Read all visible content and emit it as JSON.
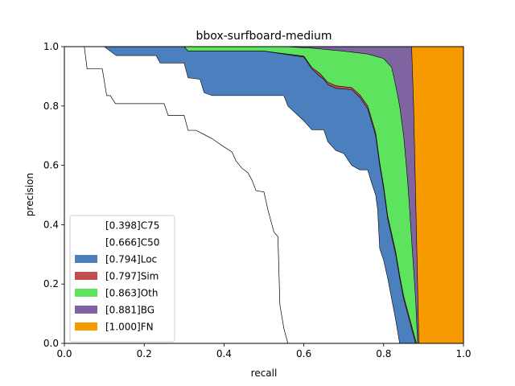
{
  "chart_data": {
    "type": "area",
    "title": "bbox-surfboard-medium",
    "xlabel": "recall",
    "ylabel": "precision",
    "xlim": [
      0,
      1
    ],
    "ylim": [
      0,
      1
    ],
    "xticks": [
      "0.0",
      "0.2",
      "0.4",
      "0.6",
      "0.8",
      "1.0"
    ],
    "yticks": [
      "0.0",
      "0.2",
      "0.4",
      "0.6",
      "0.8",
      "1.0"
    ],
    "grid": false,
    "legend_position": "lower-left",
    "series": [
      {
        "name": "[0.398]C75",
        "kind": "line",
        "color": "#000000",
        "points": [
          [
            0.0,
            1.0
          ],
          [
            0.05,
            1.0
          ],
          [
            0.057,
            0.925
          ],
          [
            0.095,
            0.925
          ],
          [
            0.106,
            0.835
          ],
          [
            0.115,
            0.835
          ],
          [
            0.128,
            0.808
          ],
          [
            0.2,
            0.808
          ],
          [
            0.25,
            0.808
          ],
          [
            0.26,
            0.768
          ],
          [
            0.3,
            0.768
          ],
          [
            0.31,
            0.718
          ],
          [
            0.33,
            0.718
          ],
          [
            0.37,
            0.69
          ],
          [
            0.4,
            0.662
          ],
          [
            0.42,
            0.645
          ],
          [
            0.43,
            0.615
          ],
          [
            0.445,
            0.59
          ],
          [
            0.46,
            0.575
          ],
          [
            0.47,
            0.55
          ],
          [
            0.48,
            0.515
          ],
          [
            0.5,
            0.51
          ],
          [
            0.51,
            0.45
          ],
          [
            0.525,
            0.375
          ],
          [
            0.535,
            0.36
          ],
          [
            0.54,
            0.13
          ],
          [
            0.55,
            0.05
          ],
          [
            0.56,
            0.0
          ]
        ]
      },
      {
        "name": "[0.666]C50",
        "kind": "area",
        "color": "#ffffff",
        "points": [
          [
            0.0,
            1.0
          ],
          [
            0.1,
            1.0
          ],
          [
            0.13,
            0.97
          ],
          [
            0.23,
            0.97
          ],
          [
            0.24,
            0.945
          ],
          [
            0.3,
            0.945
          ],
          [
            0.31,
            0.895
          ],
          [
            0.34,
            0.89
          ],
          [
            0.35,
            0.845
          ],
          [
            0.37,
            0.835
          ],
          [
            0.44,
            0.835
          ],
          [
            0.55,
            0.835
          ],
          [
            0.56,
            0.8
          ],
          [
            0.58,
            0.775
          ],
          [
            0.6,
            0.75
          ],
          [
            0.62,
            0.72
          ],
          [
            0.65,
            0.72
          ],
          [
            0.66,
            0.68
          ],
          [
            0.68,
            0.65
          ],
          [
            0.7,
            0.64
          ],
          [
            0.72,
            0.6
          ],
          [
            0.74,
            0.585
          ],
          [
            0.76,
            0.585
          ],
          [
            0.77,
            0.54
          ],
          [
            0.78,
            0.5
          ],
          [
            0.785,
            0.45
          ],
          [
            0.79,
            0.32
          ],
          [
            0.8,
            0.28
          ],
          [
            0.81,
            0.22
          ],
          [
            0.82,
            0.15
          ],
          [
            0.83,
            0.08
          ],
          [
            0.84,
            0.0
          ]
        ]
      },
      {
        "name": "[0.794]Loc",
        "kind": "area",
        "color": "#4c7fbd",
        "points": [
          [
            0.0,
            1.0
          ],
          [
            0.3,
            1.0
          ],
          [
            0.31,
            0.985
          ],
          [
            0.4,
            0.985
          ],
          [
            0.5,
            0.985
          ],
          [
            0.6,
            0.965
          ],
          [
            0.62,
            0.925
          ],
          [
            0.64,
            0.9
          ],
          [
            0.65,
            0.89
          ],
          [
            0.66,
            0.872
          ],
          [
            0.68,
            0.86
          ],
          [
            0.72,
            0.855
          ],
          [
            0.74,
            0.83
          ],
          [
            0.76,
            0.79
          ],
          [
            0.78,
            0.7
          ],
          [
            0.79,
            0.6
          ],
          [
            0.8,
            0.52
          ],
          [
            0.81,
            0.42
          ],
          [
            0.82,
            0.36
          ],
          [
            0.83,
            0.3
          ],
          [
            0.84,
            0.22
          ],
          [
            0.85,
            0.15
          ],
          [
            0.86,
            0.1
          ],
          [
            0.87,
            0.05
          ],
          [
            0.88,
            0.0
          ]
        ]
      },
      {
        "name": "[0.797]Sim",
        "kind": "area",
        "color": "#c0504d",
        "points": [
          [
            0.0,
            1.0
          ],
          [
            0.3,
            1.0
          ],
          [
            0.31,
            0.985
          ],
          [
            0.4,
            0.985
          ],
          [
            0.5,
            0.985
          ],
          [
            0.6,
            0.968
          ],
          [
            0.62,
            0.93
          ],
          [
            0.64,
            0.91
          ],
          [
            0.65,
            0.895
          ],
          [
            0.66,
            0.88
          ],
          [
            0.68,
            0.868
          ],
          [
            0.72,
            0.862
          ],
          [
            0.74,
            0.838
          ],
          [
            0.76,
            0.8
          ],
          [
            0.78,
            0.71
          ],
          [
            0.79,
            0.61
          ],
          [
            0.8,
            0.53
          ],
          [
            0.81,
            0.43
          ],
          [
            0.82,
            0.37
          ],
          [
            0.83,
            0.31
          ],
          [
            0.84,
            0.23
          ],
          [
            0.85,
            0.16
          ],
          [
            0.86,
            0.11
          ],
          [
            0.87,
            0.06
          ],
          [
            0.882,
            0.0
          ]
        ]
      },
      {
        "name": "[0.863]Oth",
        "kind": "area",
        "color": "#5ee35e",
        "points": [
          [
            0.0,
            1.0
          ],
          [
            0.36,
            1.0
          ],
          [
            0.4,
            1.0
          ],
          [
            0.55,
            1.0
          ],
          [
            0.62,
            0.995
          ],
          [
            0.66,
            0.99
          ],
          [
            0.7,
            0.985
          ],
          [
            0.76,
            0.975
          ],
          [
            0.8,
            0.96
          ],
          [
            0.82,
            0.93
          ],
          [
            0.83,
            0.87
          ],
          [
            0.84,
            0.8
          ],
          [
            0.85,
            0.7
          ],
          [
            0.86,
            0.55
          ],
          [
            0.87,
            0.35
          ],
          [
            0.88,
            0.15
          ],
          [
            0.885,
            0.0
          ]
        ]
      },
      {
        "name": "[0.881]BG",
        "kind": "area",
        "color": "#8064a2",
        "points": [
          [
            0.0,
            1.0
          ],
          [
            0.87,
            1.0
          ],
          [
            0.875,
            0.8
          ],
          [
            0.88,
            0.5
          ],
          [
            0.885,
            0.2
          ],
          [
            0.888,
            0.0
          ]
        ]
      },
      {
        "name": "[1.000]FN",
        "kind": "area",
        "color": "#f79a00",
        "points": [
          [
            0.0,
            1.0
          ],
          [
            1.0,
            1.0
          ],
          [
            1.0,
            0.0
          ]
        ]
      }
    ]
  }
}
